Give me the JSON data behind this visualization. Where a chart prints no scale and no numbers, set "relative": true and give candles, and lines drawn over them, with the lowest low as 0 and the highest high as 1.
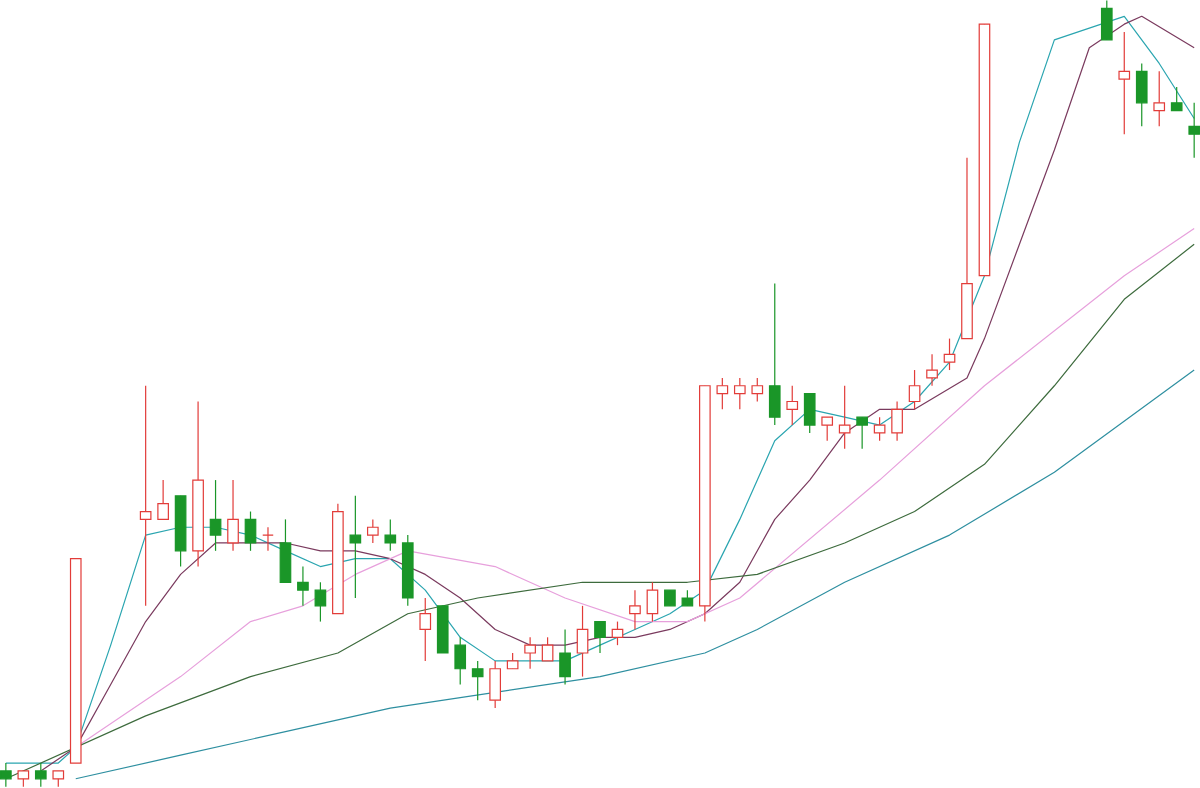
{
  "chart_data": {
    "type": "candlestick",
    "relative": true,
    "categories": [
      null,
      null,
      null,
      null,
      null,
      null,
      null,
      null,
      null,
      null,
      null,
      null,
      null,
      null,
      null,
      null,
      null,
      null,
      null,
      null,
      null,
      null,
      null,
      null,
      null,
      null,
      null,
      null,
      null,
      null,
      null,
      null,
      null,
      null,
      null,
      null,
      null,
      null,
      null,
      null,
      null,
      null,
      null,
      null,
      null,
      null,
      null,
      null,
      null,
      null,
      null,
      null,
      null,
      null,
      null,
      null,
      null,
      null,
      null,
      null,
      null,
      null,
      null,
      null,
      null,
      null,
      null,
      null,
      null
    ],
    "ohlc": [
      [
        0.02,
        0.03,
        0,
        0.01
      ],
      [
        0.01,
        0.02,
        0,
        0.02
      ],
      [
        0.02,
        0.03,
        0,
        0.01
      ],
      [
        0.01,
        0.02,
        0,
        0.02
      ],
      [
        0.03,
        0.29,
        0.03,
        0.29
      ],
      null,
      null,
      null,
      [
        0.34,
        0.51,
        0.23,
        0.35
      ],
      [
        0.34,
        0.39,
        0.34,
        0.36
      ],
      [
        0.37,
        0.37,
        0.28,
        0.3
      ],
      [
        0.3,
        0.49,
        0.28,
        0.39
      ],
      [
        0.34,
        0.39,
        0.3,
        0.32
      ],
      [
        0.31,
        0.39,
        0.3,
        0.34
      ],
      [
        0.34,
        0.35,
        0.3,
        0.31
      ],
      [
        0.32,
        0.33,
        0.3,
        0.32
      ],
      [
        0.31,
        0.34,
        0.26,
        0.26
      ],
      [
        0.26,
        0.28,
        0.23,
        0.25
      ],
      [
        0.25,
        0.26,
        0.21,
        0.23
      ],
      [
        0.22,
        0.36,
        0.22,
        0.35
      ],
      [
        0.32,
        0.37,
        0.24,
        0.31
      ],
      [
        0.32,
        0.34,
        0.31,
        0.33
      ],
      [
        0.32,
        0.34,
        0.3,
        0.31
      ],
      [
        0.31,
        0.32,
        0.23,
        0.24
      ],
      [
        0.2,
        0.24,
        0.16,
        0.22
      ],
      [
        0.23,
        0.23,
        0.17,
        0.17
      ],
      [
        0.18,
        0.19,
        0.13,
        0.15
      ],
      [
        0.15,
        0.16,
        0.11,
        0.14
      ],
      [
        0.11,
        0.16,
        0.1,
        0.15
      ],
      [
        0.15,
        0.17,
        0.15,
        0.16
      ],
      [
        0.17,
        0.19,
        0.15,
        0.18
      ],
      [
        0.16,
        0.19,
        0.16,
        0.18
      ],
      [
        0.17,
        0.2,
        0.13,
        0.14
      ],
      [
        0.17,
        0.23,
        0.14,
        0.2
      ],
      [
        0.21,
        0.21,
        0.17,
        0.19
      ],
      [
        0.19,
        0.21,
        0.18,
        0.2
      ],
      [
        0.22,
        0.25,
        0.2,
        0.23
      ],
      [
        0.22,
        0.26,
        0.21,
        0.25
      ],
      [
        0.25,
        0.25,
        0.23,
        0.23
      ],
      [
        0.24,
        0.25,
        0.23,
        0.23
      ],
      [
        0.23,
        0.51,
        0.21,
        0.51
      ],
      [
        0.5,
        0.52,
        0.48,
        0.51
      ],
      [
        0.5,
        0.52,
        0.48,
        0.51
      ],
      [
        0.5,
        0.52,
        0.49,
        0.51
      ],
      [
        0.51,
        0.64,
        0.46,
        0.47
      ],
      [
        0.48,
        0.51,
        0.46,
        0.49
      ],
      [
        0.5,
        0.5,
        0.45,
        0.46
      ],
      [
        0.46,
        0.47,
        0.44,
        0.47
      ],
      [
        0.45,
        0.51,
        0.43,
        0.46
      ],
      [
        0.47,
        0.47,
        0.43,
        0.46
      ],
      [
        0.45,
        0.47,
        0.44,
        0.46
      ],
      [
        0.45,
        0.49,
        0.44,
        0.48
      ],
      [
        0.49,
        0.53,
        0.48,
        0.51
      ],
      [
        0.52,
        0.55,
        0.51,
        0.53
      ],
      [
        0.54,
        0.57,
        0.53,
        0.55
      ],
      [
        0.57,
        0.8,
        0.57,
        0.64
      ],
      [
        0.65,
        0.97,
        0.65,
        0.97
      ],
      null,
      null,
      null,
      null,
      null,
      null,
      [
        0.99,
        1,
        0.95,
        0.95
      ],
      [
        0.9,
        0.96,
        0.83,
        0.91
      ],
      [
        0.91,
        0.92,
        0.84,
        0.87
      ],
      [
        0.86,
        0.91,
        0.84,
        0.87
      ],
      [
        0.87,
        0.89,
        0.86,
        0.86
      ],
      [
        0.84,
        0.87,
        0.8,
        0.83
      ]
    ],
    "series": [
      {
        "type": "line",
        "color": "#2aa5b0",
        "values": [
          0.03,
          null,
          null,
          0.03,
          0.05,
          null,
          0.18,
          null,
          0.32,
          null,
          0.33,
          null,
          0.33,
          null,
          0.32,
          null,
          0.3,
          null,
          0.28,
          null,
          0.29,
          null,
          0.29,
          null,
          0.25,
          null,
          0.19,
          null,
          0.16,
          null,
          0.16,
          null,
          0.16,
          null,
          0.18,
          null,
          0.2,
          null,
          0.22,
          null,
          0.25,
          null,
          0.34,
          null,
          0.44,
          null,
          0.48,
          null,
          0.47,
          null,
          0.46,
          null,
          0.49,
          null,
          0.54,
          null,
          0.65,
          null,
          0.82,
          null,
          0.95,
          null,
          null,
          null,
          0.98,
          null,
          0.92,
          null,
          0.85
        ]
      },
      {
        "type": "line",
        "color": "#7a3a5e",
        "values": [
          null,
          null,
          0.02,
          null,
          0.05,
          null,
          0.13,
          null,
          0.21,
          null,
          0.27,
          null,
          0.31,
          null,
          0.31,
          null,
          0.31,
          null,
          0.3,
          null,
          0.3,
          null,
          0.29,
          null,
          0.27,
          null,
          0.24,
          null,
          0.2,
          null,
          0.18,
          null,
          0.18,
          null,
          0.19,
          null,
          0.19,
          null,
          0.2,
          null,
          0.22,
          null,
          0.26,
          null,
          0.34,
          null,
          0.39,
          null,
          0.45,
          null,
          0.48,
          null,
          0.48,
          null,
          null,
          0.52,
          0.57,
          null,
          0.69,
          null,
          0.81,
          null,
          0.94,
          null,
          0.97,
          0.98,
          null,
          null,
          0.94
        ]
      },
      {
        "type": "line",
        "color": "#e7a0dc",
        "values": [
          null,
          null,
          null,
          null,
          0.05,
          null,
          null,
          null,
          null,
          null,
          0.14,
          null,
          null,
          null,
          0.21,
          null,
          null,
          0.23,
          null,
          null,
          0.27,
          null,
          null,
          0.3,
          null,
          null,
          null,
          null,
          0.28,
          null,
          null,
          null,
          0.24,
          null,
          null,
          null,
          0.21,
          null,
          null,
          0.21,
          null,
          null,
          0.24,
          null,
          null,
          null,
          null,
          null,
          null,
          null,
          0.39,
          null,
          null,
          null,
          null,
          null,
          0.51,
          null,
          null,
          null,
          0.58,
          null,
          null,
          null,
          0.65,
          null,
          null,
          null,
          0.71
        ]
      },
      {
        "type": "line",
        "color": "#3d6b3d",
        "values": [
          0.01,
          null,
          null,
          null,
          null,
          null,
          null,
          null,
          0.09,
          null,
          null,
          null,
          null,
          null,
          0.14,
          null,
          null,
          null,
          null,
          0.17,
          null,
          null,
          null,
          0.22,
          null,
          null,
          null,
          0.24,
          null,
          null,
          null,
          null,
          null,
          0.26,
          null,
          null,
          null,
          null,
          null,
          0.26,
          null,
          null,
          null,
          0.27,
          null,
          null,
          null,
          null,
          0.31,
          null,
          null,
          null,
          0.35,
          null,
          null,
          null,
          0.41,
          null,
          null,
          null,
          0.51,
          null,
          null,
          null,
          0.62,
          null,
          null,
          null,
          0.69
        ]
      },
      {
        "type": "line",
        "color": "#2e8fa0",
        "values": [
          null,
          null,
          null,
          null,
          0.01,
          null,
          null,
          null,
          null,
          null,
          0.04,
          null,
          null,
          null,
          null,
          null,
          0.07,
          null,
          null,
          null,
          null,
          null,
          0.1,
          null,
          null,
          null,
          null,
          null,
          0.12,
          null,
          null,
          null,
          null,
          null,
          0.14,
          null,
          null,
          null,
          null,
          null,
          0.17,
          null,
          null,
          0.2,
          null,
          null,
          null,
          null,
          0.26,
          null,
          null,
          null,
          null,
          null,
          0.32,
          null,
          null,
          null,
          null,
          null,
          0.4,
          null,
          null,
          null,
          null,
          null,
          null,
          null,
          0.53
        ]
      }
    ]
  }
}
